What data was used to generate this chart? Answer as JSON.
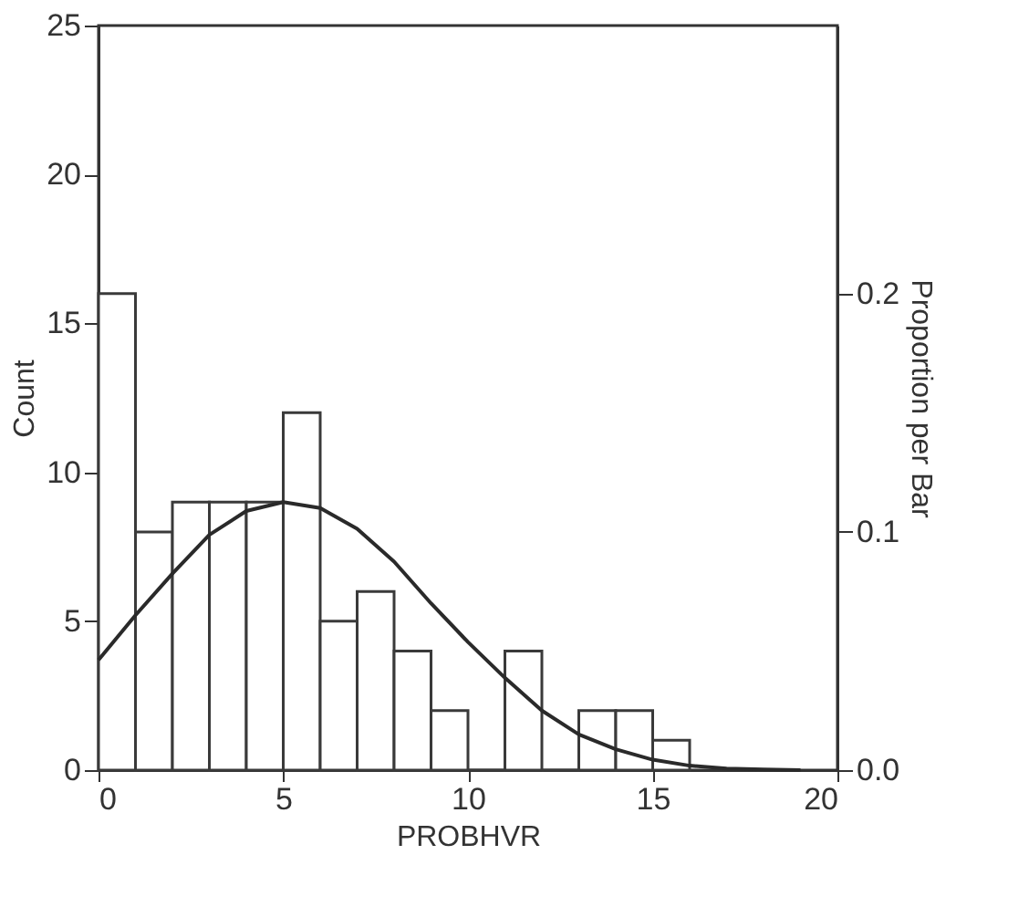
{
  "chart_data": {
    "type": "histogram",
    "xlabel": "PROBHVR",
    "ylabel": "Count",
    "y2label": "Proportion per Bar",
    "bins": [
      0,
      1,
      2,
      3,
      4,
      5,
      6,
      7,
      8,
      9,
      10,
      11,
      12,
      13,
      14,
      15,
      16
    ],
    "values": [
      16,
      8,
      9,
      9,
      9,
      12,
      5,
      6,
      4,
      2,
      0,
      4,
      0,
      2,
      2,
      1
    ],
    "color": "#3a3a3a",
    "series": [
      {
        "type": "line",
        "color": "#2a2a2a",
        "x": [
          0,
          1,
          2,
          3,
          4,
          5,
          6,
          7,
          8,
          9,
          10,
          11,
          12,
          13,
          14,
          15,
          16,
          17,
          18,
          19
        ],
        "values": [
          3.7,
          5.2,
          6.6,
          7.9,
          8.7,
          9.0,
          8.8,
          8.1,
          7.0,
          5.6,
          4.3,
          3.1,
          2.0,
          1.2,
          0.7,
          0.35,
          0.15,
          0.05,
          0.02,
          0.0
        ]
      }
    ],
    "xlim": [
      0,
      20
    ],
    "xticks": [
      0,
      5,
      10,
      15,
      20
    ],
    "ylim": [
      0,
      25
    ],
    "yticks": [
      0,
      5,
      10,
      15,
      20,
      25
    ],
    "y2lim": [
      0,
      0.3125
    ],
    "y2ticks": [
      {
        "value": 0,
        "label": "0.0"
      },
      {
        "value": 0.1,
        "label": "0.1"
      },
      {
        "value": 0.2,
        "label": "0.2"
      }
    ],
    "grid": false,
    "legend": false
  }
}
